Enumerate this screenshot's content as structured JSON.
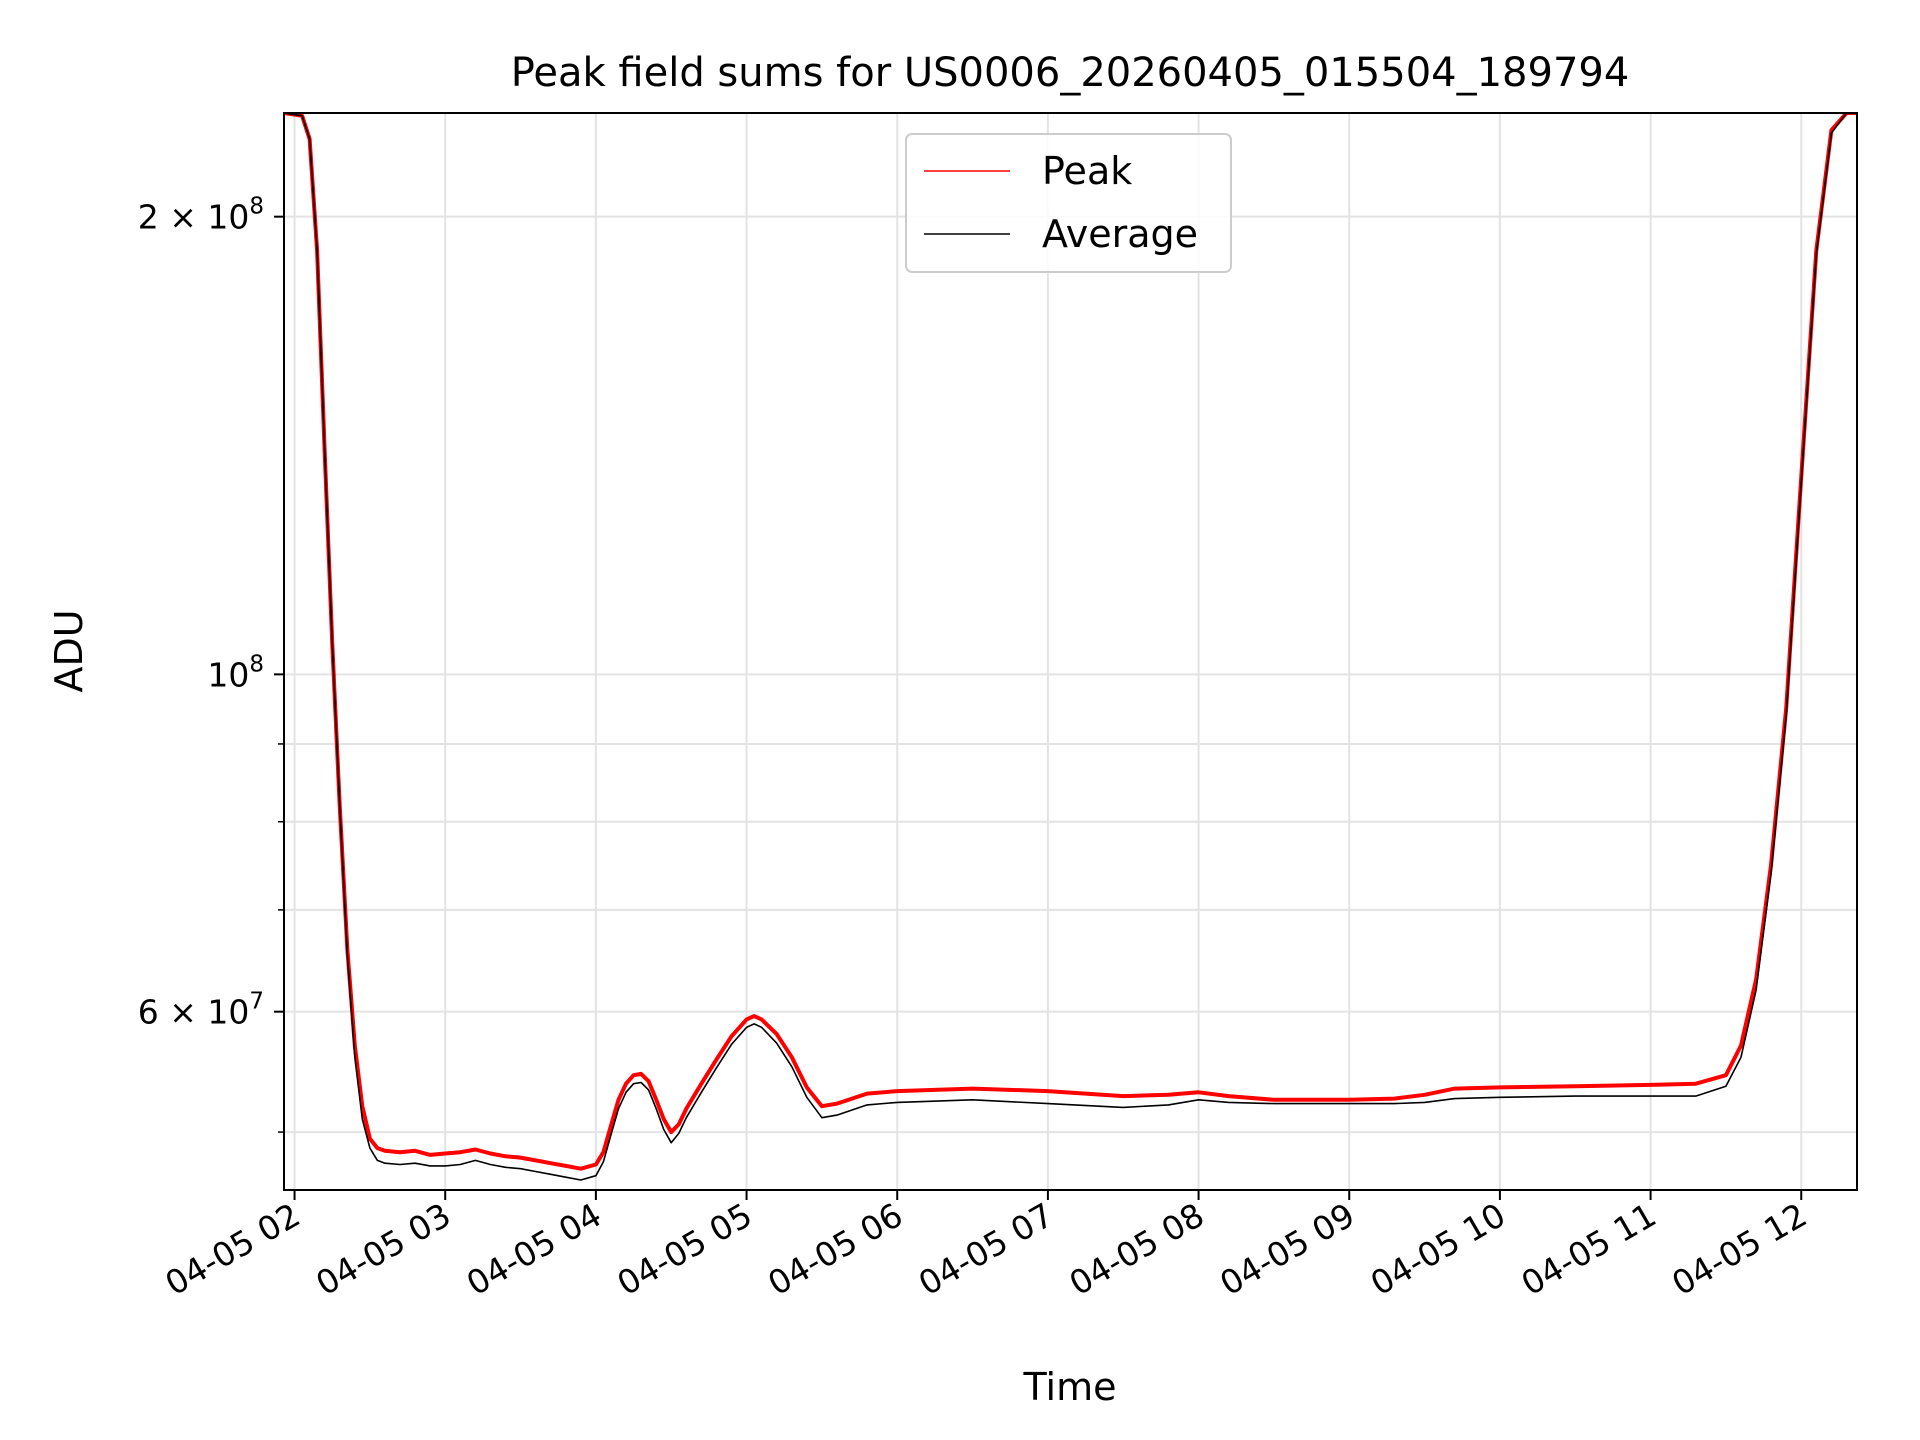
{
  "chart_data": {
    "type": "line",
    "title": "Peak field sums for US0006_20260405_015504_189794",
    "xlabel": "Time",
    "ylabel": "ADU",
    "yscale": "log",
    "xlim_hours": [
      1.93,
      12.37
    ],
    "ylim": [
      45800000,
      234000000
    ],
    "grid": true,
    "legend_position": "top-center",
    "x_ticks": [
      {
        "label": "04-05 02",
        "hour": 2
      },
      {
        "label": "04-05 03",
        "hour": 3
      },
      {
        "label": "04-05 04",
        "hour": 4
      },
      {
        "label": "04-05 05",
        "hour": 5
      },
      {
        "label": "04-05 06",
        "hour": 6
      },
      {
        "label": "04-05 07",
        "hour": 7
      },
      {
        "label": "04-05 08",
        "hour": 8
      },
      {
        "label": "04-05 09",
        "hour": 9
      },
      {
        "label": "04-05 10",
        "hour": 10
      },
      {
        "label": "04-05 11",
        "hour": 11
      },
      {
        "label": "04-05 12",
        "hour": 12
      }
    ],
    "y_ticks_major": [
      {
        "value": 200000000,
        "mant": "2",
        "exp": "8"
      },
      {
        "value": 100000000,
        "mant": "",
        "exp": "8"
      },
      {
        "value": 60000000,
        "mant": "6",
        "exp": "7"
      }
    ],
    "y_ticks_minor": [
      50000000,
      70000000,
      80000000,
      90000000
    ],
    "series": [
      {
        "name": "Peak",
        "color": "#ff0000",
        "points": [
          [
            1.93,
            234000000
          ],
          [
            2.05,
            233000000
          ],
          [
            2.1,
            225000000
          ],
          [
            2.15,
            190000000
          ],
          [
            2.2,
            140000000
          ],
          [
            2.25,
            105000000
          ],
          [
            2.3,
            82000000
          ],
          [
            2.35,
            66000000
          ],
          [
            2.4,
            57000000
          ],
          [
            2.45,
            52000000
          ],
          [
            2.5,
            49500000
          ],
          [
            2.55,
            48800000
          ],
          [
            2.6,
            48600000
          ],
          [
            2.7,
            48500000
          ],
          [
            2.8,
            48600000
          ],
          [
            2.9,
            48300000
          ],
          [
            3.0,
            48400000
          ],
          [
            3.1,
            48500000
          ],
          [
            3.2,
            48700000
          ],
          [
            3.3,
            48400000
          ],
          [
            3.4,
            48200000
          ],
          [
            3.5,
            48100000
          ],
          [
            3.6,
            47900000
          ],
          [
            3.7,
            47700000
          ],
          [
            3.8,
            47500000
          ],
          [
            3.9,
            47300000
          ],
          [
            4.0,
            47600000
          ],
          [
            4.05,
            48500000
          ],
          [
            4.1,
            50500000
          ],
          [
            4.15,
            52500000
          ],
          [
            4.2,
            53800000
          ],
          [
            4.25,
            54500000
          ],
          [
            4.3,
            54600000
          ],
          [
            4.35,
            54000000
          ],
          [
            4.4,
            52500000
          ],
          [
            4.45,
            51000000
          ],
          [
            4.5,
            50000000
          ],
          [
            4.55,
            50600000
          ],
          [
            4.6,
            51800000
          ],
          [
            4.7,
            53800000
          ],
          [
            4.8,
            55800000
          ],
          [
            4.9,
            57800000
          ],
          [
            5.0,
            59300000
          ],
          [
            5.05,
            59600000
          ],
          [
            5.1,
            59300000
          ],
          [
            5.2,
            58000000
          ],
          [
            5.3,
            56000000
          ],
          [
            5.4,
            53500000
          ],
          [
            5.5,
            52000000
          ],
          [
            5.6,
            52200000
          ],
          [
            5.7,
            52600000
          ],
          [
            5.8,
            53000000
          ],
          [
            6.0,
            53200000
          ],
          [
            6.5,
            53400000
          ],
          [
            7.0,
            53200000
          ],
          [
            7.5,
            52800000
          ],
          [
            7.8,
            52900000
          ],
          [
            8.0,
            53100000
          ],
          [
            8.2,
            52800000
          ],
          [
            8.5,
            52500000
          ],
          [
            9.0,
            52500000
          ],
          [
            9.3,
            52600000
          ],
          [
            9.5,
            52900000
          ],
          [
            9.7,
            53400000
          ],
          [
            10.0,
            53500000
          ],
          [
            10.5,
            53600000
          ],
          [
            11.0,
            53700000
          ],
          [
            11.3,
            53800000
          ],
          [
            11.5,
            54500000
          ],
          [
            11.6,
            57000000
          ],
          [
            11.7,
            63000000
          ],
          [
            11.8,
            75000000
          ],
          [
            11.9,
            95000000
          ],
          [
            12.0,
            135000000
          ],
          [
            12.1,
            190000000
          ],
          [
            12.2,
            228000000
          ],
          [
            12.3,
            234000000
          ],
          [
            12.37,
            234000000
          ]
        ]
      },
      {
        "name": "Average",
        "color": "#000000",
        "points": [
          [
            1.93,
            234000000
          ],
          [
            2.05,
            233000000
          ],
          [
            2.1,
            225000000
          ],
          [
            2.15,
            190000000
          ],
          [
            2.2,
            140000000
          ],
          [
            2.25,
            105000000
          ],
          [
            2.3,
            82000000
          ],
          [
            2.35,
            65500000
          ],
          [
            2.4,
            56000000
          ],
          [
            2.45,
            51000000
          ],
          [
            2.5,
            48800000
          ],
          [
            2.55,
            47900000
          ],
          [
            2.6,
            47700000
          ],
          [
            2.7,
            47600000
          ],
          [
            2.8,
            47700000
          ],
          [
            2.9,
            47500000
          ],
          [
            3.0,
            47500000
          ],
          [
            3.1,
            47600000
          ],
          [
            3.2,
            47900000
          ],
          [
            3.3,
            47600000
          ],
          [
            3.4,
            47400000
          ],
          [
            3.5,
            47300000
          ],
          [
            3.6,
            47100000
          ],
          [
            3.7,
            46900000
          ],
          [
            3.8,
            46700000
          ],
          [
            3.9,
            46500000
          ],
          [
            4.0,
            46800000
          ],
          [
            4.05,
            47800000
          ],
          [
            4.1,
            49800000
          ],
          [
            4.15,
            51800000
          ],
          [
            4.2,
            53100000
          ],
          [
            4.25,
            53800000
          ],
          [
            4.3,
            53900000
          ],
          [
            4.35,
            53300000
          ],
          [
            4.4,
            51800000
          ],
          [
            4.45,
            50200000
          ],
          [
            4.5,
            49200000
          ],
          [
            4.55,
            49900000
          ],
          [
            4.6,
            51100000
          ],
          [
            4.7,
            53100000
          ],
          [
            4.8,
            55100000
          ],
          [
            4.9,
            57100000
          ],
          [
            5.0,
            58600000
          ],
          [
            5.05,
            58900000
          ],
          [
            5.1,
            58600000
          ],
          [
            5.2,
            57200000
          ],
          [
            5.3,
            55200000
          ],
          [
            5.4,
            52700000
          ],
          [
            5.5,
            51100000
          ],
          [
            5.6,
            51300000
          ],
          [
            5.7,
            51700000
          ],
          [
            5.8,
            52100000
          ],
          [
            6.0,
            52300000
          ],
          [
            6.5,
            52500000
          ],
          [
            7.0,
            52200000
          ],
          [
            7.5,
            51900000
          ],
          [
            7.8,
            52100000
          ],
          [
            8.0,
            52500000
          ],
          [
            8.2,
            52300000
          ],
          [
            8.5,
            52200000
          ],
          [
            9.0,
            52200000
          ],
          [
            9.3,
            52200000
          ],
          [
            9.5,
            52300000
          ],
          [
            9.7,
            52600000
          ],
          [
            10.0,
            52700000
          ],
          [
            10.5,
            52800000
          ],
          [
            11.0,
            52800000
          ],
          [
            11.3,
            52800000
          ],
          [
            11.5,
            53600000
          ],
          [
            11.6,
            56000000
          ],
          [
            11.7,
            62000000
          ],
          [
            11.8,
            74000000
          ],
          [
            11.9,
            94000000
          ],
          [
            12.0,
            134000000
          ],
          [
            12.1,
            189000000
          ],
          [
            12.2,
            227000000
          ],
          [
            12.3,
            234000000
          ],
          [
            12.37,
            234000000
          ]
        ]
      }
    ]
  }
}
